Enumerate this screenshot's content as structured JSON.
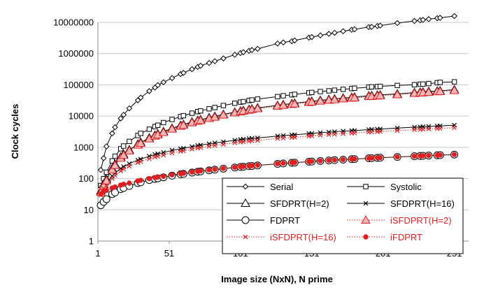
{
  "chart_data": {
    "type": "line",
    "xlabel": "Image size (NxN), N prime",
    "ylabel": "Clock cycles",
    "x_ticks": [
      1,
      51,
      101,
      151,
      201,
      251
    ],
    "x_tick_labels": [
      "1",
      "51",
      "101",
      "151",
      "201",
      "251"
    ],
    "xlim": [
      1,
      261
    ],
    "y_scale": "log",
    "ylim": [
      1,
      10000000
    ],
    "y_ticks": [
      1,
      10,
      100,
      1000,
      10000,
      100000,
      1000000,
      10000000
    ],
    "y_tick_labels": [
      "1",
      "10",
      "100",
      "1000",
      "10000",
      "100000",
      "1000000",
      "10000000"
    ],
    "grid": "horizontal",
    "legend_position": "bottom-right",
    "x": [
      3,
      5,
      7,
      11,
      13,
      17,
      19,
      23,
      29,
      31,
      37,
      41,
      43,
      47,
      53,
      59,
      61,
      67,
      71,
      73,
      79,
      83,
      89,
      97,
      101,
      103,
      107,
      109,
      113,
      127,
      131,
      137,
      139,
      149,
      151,
      157,
      163,
      167,
      173,
      179,
      181,
      191,
      193,
      197,
      199,
      211,
      223,
      227,
      229,
      233,
      239,
      241,
      251
    ],
    "series": [
      {
        "name": "Serial",
        "color": "#000000",
        "marker": "diamond",
        "line": "solid",
        "text_color": "#000000",
        "values": [
          189,
          450,
          1070,
          2800,
          4400,
          8400,
          11000,
          17700,
          32000,
          39000,
          63000,
          82000,
          98000,
          121000,
          165000,
          222000,
          242000,
          318000,
          375000,
          410000,
          500000,
          570000,
          700000,
          920000,
          1040000,
          1110000,
          1230000,
          1300000,
          1420000,
          2100000,
          2280000,
          2500000,
          2630000,
          3250000,
          3390000,
          3830000,
          4290000,
          4640000,
          5190000,
          5790000,
          6000000,
          7090000,
          7180000,
          7650000,
          7880000,
          9500000,
          11100000,
          11700000,
          12000000,
          12700000,
          13600000,
          14000000,
          15900000
        ]
      },
      {
        "name": "Systolic",
        "color": "#000000",
        "marker": "square",
        "line": "solid",
        "text_color": "#000000",
        "values": [
          60,
          100,
          160,
          370,
          520,
          900,
          1100,
          1550,
          2400,
          2800,
          3800,
          4600,
          5100,
          6200,
          7800,
          9600,
          10300,
          12400,
          13900,
          14700,
          17100,
          18800,
          21800,
          25800,
          28000,
          29000,
          31500,
          32800,
          35000,
          42000,
          44800,
          48000,
          49800,
          55600,
          57000,
          61000,
          64400,
          67500,
          72000,
          76200,
          78000,
          84700,
          86300,
          88000,
          89700,
          95500,
          101000,
          105000,
          106000,
          110000,
          117000,
          120000,
          125000
        ]
      },
      {
        "name": "SFDPRT(H=2)",
        "color": "#000000",
        "marker": "triangle",
        "line": "solid",
        "text_color": "#000000",
        "values": [
          40,
          65,
          95,
          210,
          290,
          490,
          600,
          830,
          1270,
          1440,
          2000,
          2450,
          2700,
          3200,
          4100,
          5050,
          5400,
          6500,
          7300,
          7700,
          8900,
          9800,
          11400,
          13400,
          14600,
          15200,
          16400,
          17100,
          18300,
          22000,
          23400,
          25100,
          26000,
          29000,
          29800,
          32000,
          34200,
          35600,
          37900,
          40000,
          40800,
          44700,
          45300,
          46900,
          47600,
          51400,
          56600,
          58400,
          59300,
          61100,
          63900,
          64800,
          70000
        ]
      },
      {
        "name": "SFDPRT(H=16)",
        "color": "#000000",
        "marker": "x",
        "line": "solid",
        "text_color": "#000000",
        "values": [
          35,
          55,
          70,
          120,
          150,
          210,
          240,
          300,
          390,
          420,
          520,
          590,
          620,
          680,
          800,
          900,
          930,
          1050,
          1140,
          1180,
          1300,
          1380,
          1500,
          1680,
          1780,
          1820,
          1900,
          1940,
          2000,
          2300,
          2380,
          2480,
          2520,
          2750,
          2800,
          2940,
          3070,
          3160,
          3300,
          3420,
          3460,
          3690,
          3720,
          3810,
          3850,
          4140,
          4420,
          4500,
          4550,
          4650,
          4800,
          4850,
          5100
        ]
      },
      {
        "name": "FDPRT",
        "color": "#000000",
        "marker": "circle",
        "line": "solid",
        "text_color": "#000000",
        "values": [
          14,
          18,
          22,
          32,
          36,
          46,
          50,
          58,
          72,
          76,
          90,
          98,
          102,
          110,
          124,
          138,
          142,
          156,
          166,
          170,
          184,
          194,
          208,
          226,
          236,
          240,
          250,
          254,
          264,
          296,
          306,
          320,
          324,
          348,
          352,
          366,
          380,
          390,
          404,
          418,
          422,
          446,
          450,
          460,
          464,
          492,
          520,
          530,
          534,
          544,
          558,
          562,
          586
        ]
      },
      {
        "name": "iSFDPRT(H=2)",
        "color": "#e02020",
        "marker": "triangle",
        "line": "dotted",
        "text_color": "#e02020",
        "values": [
          36,
          58,
          85,
          190,
          265,
          450,
          555,
          770,
          1180,
          1340,
          1870,
          2290,
          2530,
          3000,
          3850,
          4750,
          5080,
          6120,
          6880,
          7260,
          8400,
          9250,
          10800,
          12700,
          13800,
          14400,
          15500,
          16200,
          17300,
          20800,
          22100,
          23700,
          24500,
          27400,
          28200,
          30200,
          32300,
          33600,
          35800,
          37800,
          38500,
          42200,
          42800,
          44300,
          45000,
          48600,
          53500,
          55200,
          56000,
          57700,
          60400,
          61200,
          66000
        ]
      },
      {
        "name": "iSFDPRT(H=16)",
        "color": "#e02020",
        "marker": "x",
        "line": "dotted",
        "text_color": "#e02020",
        "values": [
          30,
          48,
          60,
          100,
          125,
          175,
          200,
          250,
          325,
          350,
          430,
          490,
          515,
          565,
          665,
          750,
          775,
          875,
          950,
          985,
          1085,
          1150,
          1250,
          1400,
          1480,
          1515,
          1580,
          1615,
          1665,
          1915,
          1985,
          2065,
          2100,
          2290,
          2330,
          2450,
          2560,
          2630,
          2750,
          2850,
          2880,
          3075,
          3100,
          3175,
          3210,
          3450,
          3680,
          3750,
          3790,
          3875,
          4000,
          4040,
          4250
        ]
      },
      {
        "name": "iFDPRT",
        "color": "#e02020",
        "marker": "dot",
        "line": "dotted",
        "text_color": "#e02020",
        "values": [
          32,
          38,
          42,
          50,
          54,
          62,
          66,
          72,
          84,
          88,
          100,
          108,
          112,
          118,
          132,
          144,
          148,
          162,
          172,
          176,
          190,
          198,
          212,
          230,
          240,
          244,
          254,
          258,
          268,
          300,
          310,
          324,
          328,
          352,
          356,
          370,
          384,
          394,
          408,
          422,
          426,
          450,
          454,
          464,
          468,
          496,
          524,
          534,
          538,
          548,
          562,
          566,
          590
        ]
      }
    ]
  }
}
